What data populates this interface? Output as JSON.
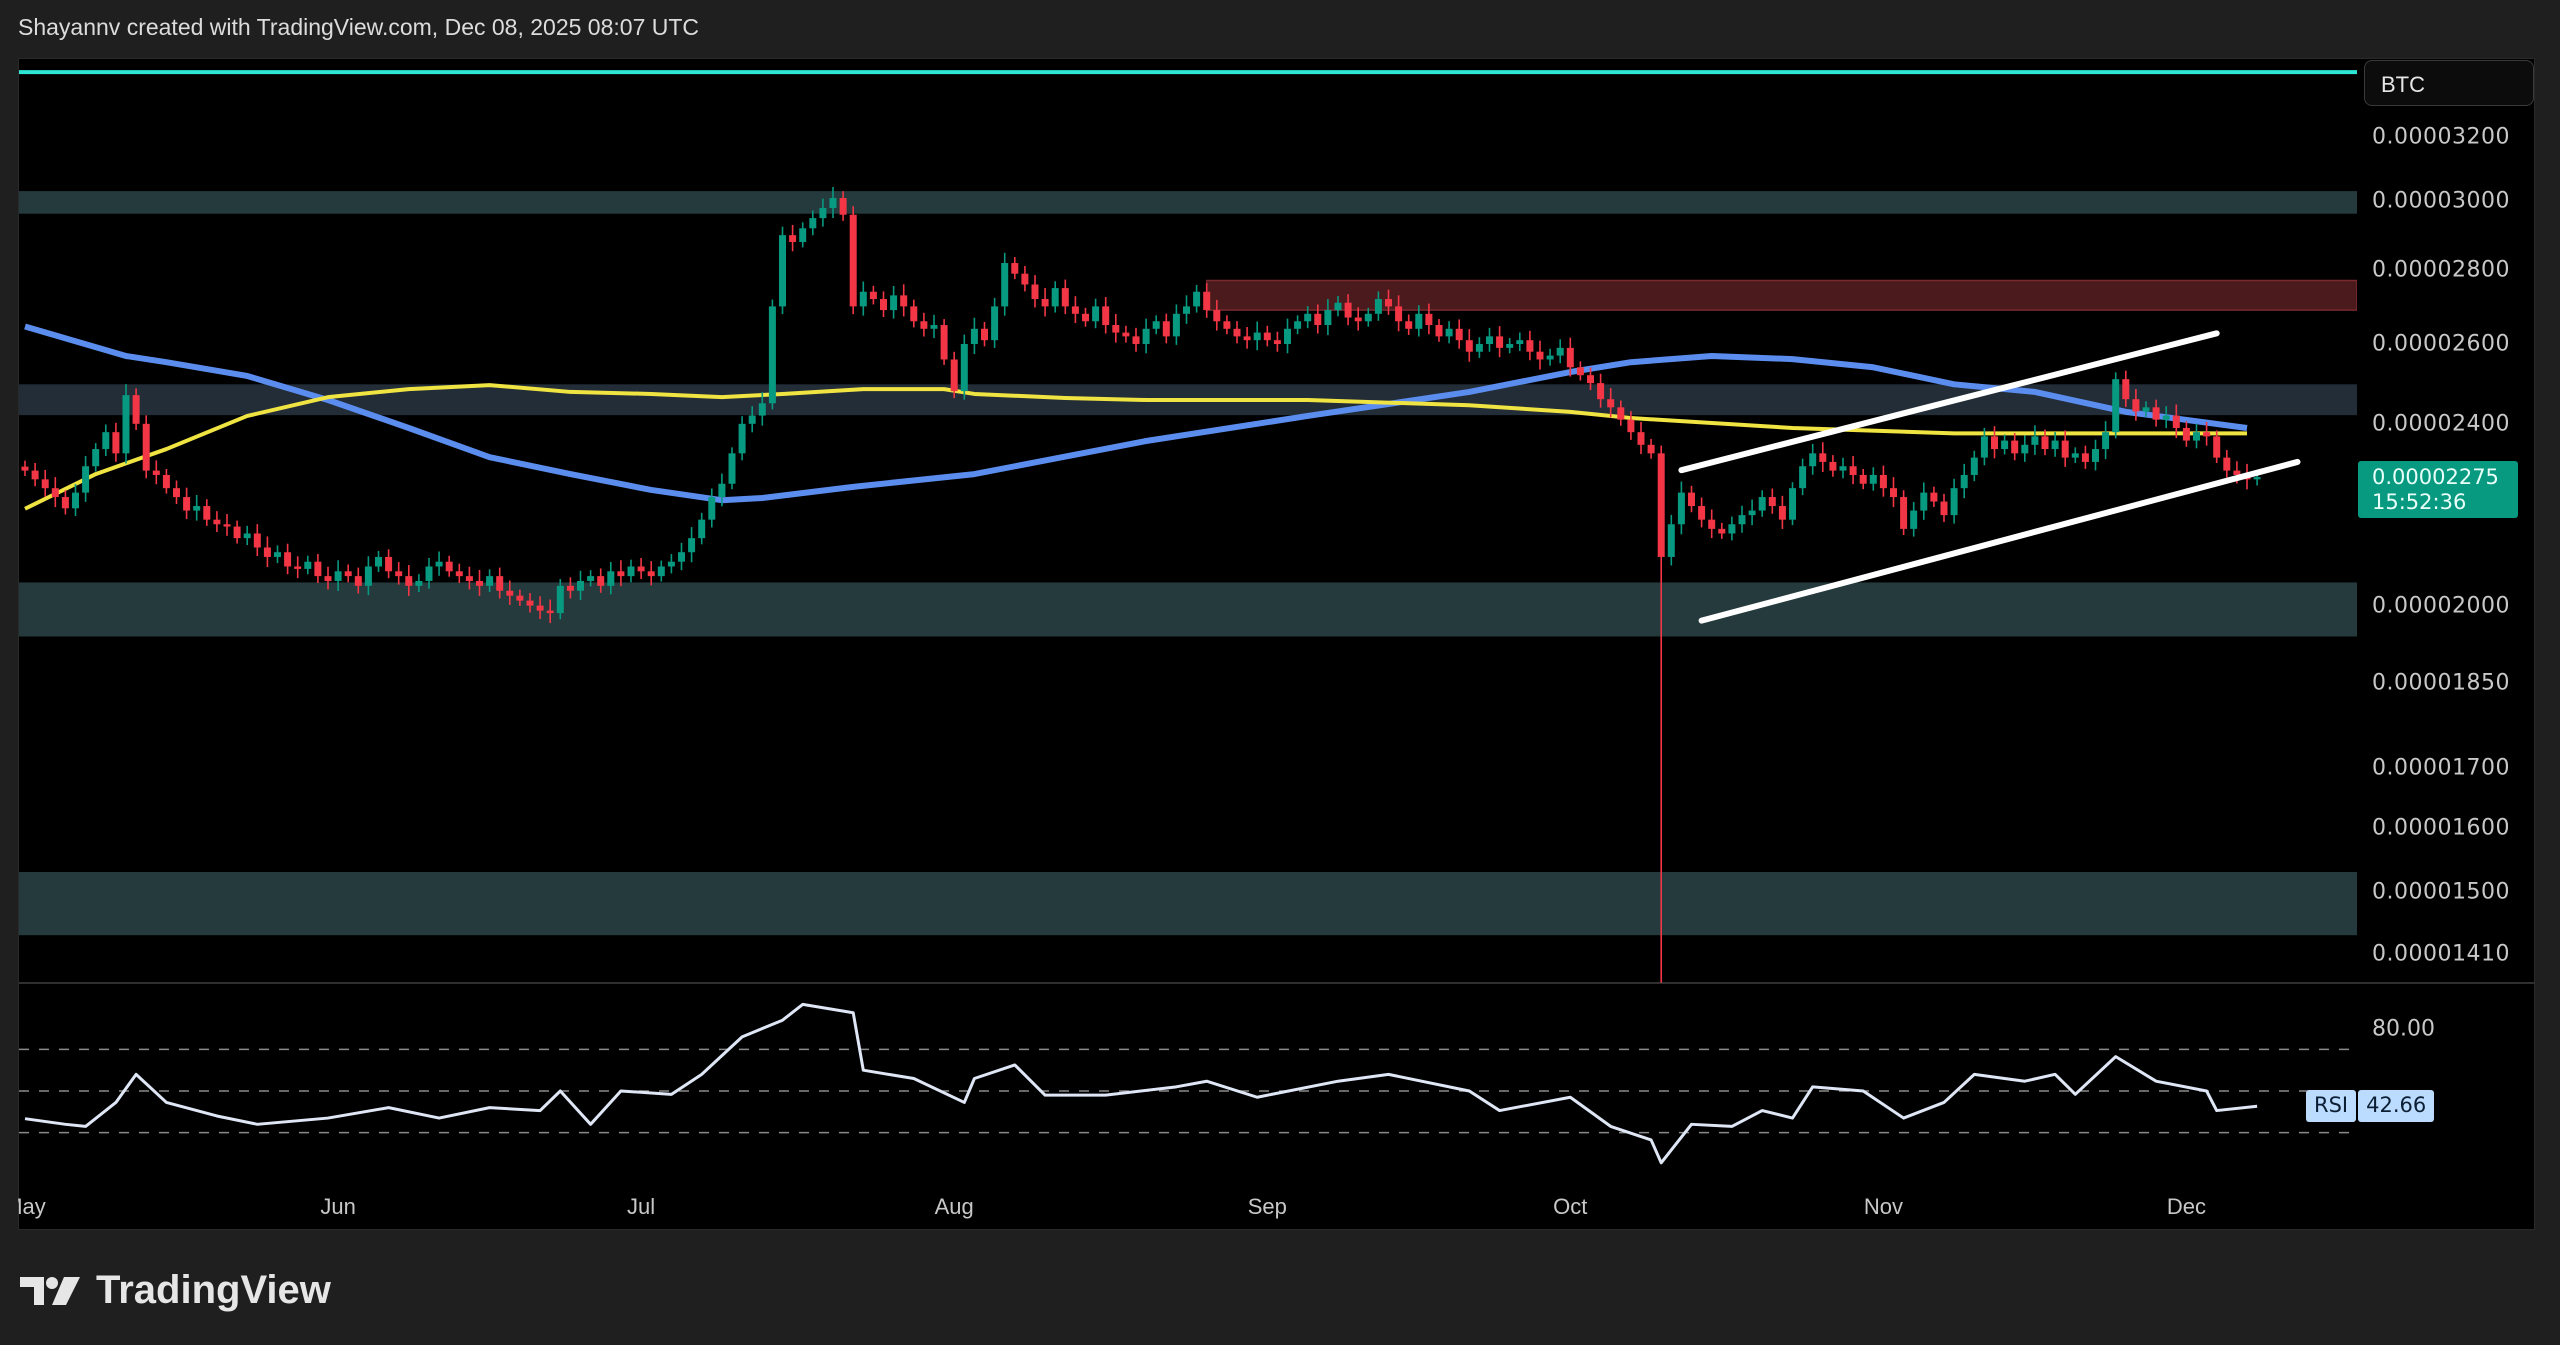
{
  "header": {
    "credit": "Shayannv created with TradingView.com, Dec 08, 2025 08:07 UTC"
  },
  "footer": {
    "logo_text": "TradingView"
  },
  "price_axis": {
    "currency": "BTC",
    "ticks": [
      "0.00003200",
      "0.00003000",
      "0.00002800",
      "0.00002600",
      "0.00002400",
      "0.00002000",
      "0.00001850",
      "0.00001700",
      "0.00001600",
      "0.00001500",
      "0.00001410"
    ],
    "last_price": "0.00002275",
    "countdown": "15:52:36",
    "last_price_color": "#089981"
  },
  "rsi_panel": {
    "label": "RSI",
    "value": "42.66",
    "tick": "80.00",
    "levels": [
      70,
      50,
      30
    ]
  },
  "time_axis": {
    "labels": [
      {
        "date": "2025-05-01",
        "text": "May"
      },
      {
        "date": "2025-06-01",
        "text": "Jun"
      },
      {
        "date": "2025-07-01",
        "text": "Jul"
      },
      {
        "date": "2025-08-01",
        "text": "Aug"
      },
      {
        "date": "2025-09-01",
        "text": "Sep"
      },
      {
        "date": "2025-10-01",
        "text": "Oct"
      },
      {
        "date": "2025-11-01",
        "text": "Nov"
      },
      {
        "date": "2025-12-01",
        "text": "Dec"
      }
    ]
  },
  "chart_data": {
    "type": "candlestick",
    "scale": "log",
    "ylim": [
      1.37e-05,
      3.45e-05
    ],
    "interval": "1D",
    "start_date": "2025-05-01",
    "colors": {
      "up": "#089981",
      "down": "#f23645",
      "ma_blue": "#5b8def",
      "ma_yellow": "#f0e442",
      "resistance_line": "#2ee6d6",
      "trendline": "#ffffff"
    },
    "closes": [
      2.29e-05,
      2.27e-05,
      2.25e-05,
      2.23e-05,
      2.205e-05,
      2.24e-05,
      2.3e-05,
      2.34e-05,
      2.38e-05,
      2.33e-05,
      2.47e-05,
      2.4e-05,
      2.29e-05,
      2.28e-05,
      2.25e-05,
      2.23e-05,
      2.2e-05,
      2.21e-05,
      2.18e-05,
      2.17e-05,
      2.165e-05,
      2.14e-05,
      2.15e-05,
      2.12e-05,
      2.1e-05,
      2.11e-05,
      2.08e-05,
      2.075e-05,
      2.09e-05,
      2.06e-05,
      2.05e-05,
      2.07e-05,
      2.06e-05,
      2.04e-05,
      2.08e-05,
      2.1e-05,
      2.07e-05,
      2.06e-05,
      2.04e-05,
      2.05e-05,
      2.08e-05,
      2.09e-05,
      2.07e-05,
      2.06e-05,
      2.05e-05,
      2.04e-05,
      2.06e-05,
      2.03e-05,
      2.02e-05,
      2.01e-05,
      2e-05,
      1.99e-05,
      1.985e-05,
      2.04e-05,
      2.03e-05,
      2.05e-05,
      2.06e-05,
      2.04e-05,
      2.07e-05,
      2.06e-05,
      2.08e-05,
      2.07e-05,
      2.06e-05,
      2.08e-05,
      2.09e-05,
      2.11e-05,
      2.14e-05,
      2.18e-05,
      2.23e-05,
      2.26e-05,
      2.33e-05,
      2.4e-05,
      2.42e-05,
      2.45e-05,
      2.7e-05,
      2.9e-05,
      2.88e-05,
      2.92e-05,
      2.95e-05,
      2.98e-05,
      3.01e-05,
      2.96e-05,
      2.7e-05,
      2.74e-05,
      2.72e-05,
      2.69e-05,
      2.73e-05,
      2.7e-05,
      2.66e-05,
      2.64e-05,
      2.65e-05,
      2.56e-05,
      2.48e-05,
      2.6e-05,
      2.64e-05,
      2.61e-05,
      2.7e-05,
      2.82e-05,
      2.79e-05,
      2.76e-05,
      2.72e-05,
      2.7e-05,
      2.75e-05,
      2.7e-05,
      2.68e-05,
      2.66e-05,
      2.7e-05,
      2.65e-05,
      2.63e-05,
      2.62e-05,
      2.6e-05,
      2.64e-05,
      2.66e-05,
      2.62e-05,
      2.68e-05,
      2.7e-05,
      2.74e-05,
      2.69e-05,
      2.66e-05,
      2.64e-05,
      2.62e-05,
      2.61e-05,
      2.63e-05,
      2.61e-05,
      2.6e-05,
      2.64e-05,
      2.66e-05,
      2.68e-05,
      2.65e-05,
      2.69e-05,
      2.71e-05,
      2.67e-05,
      2.66e-05,
      2.68e-05,
      2.72e-05,
      2.7e-05,
      2.66e-05,
      2.64e-05,
      2.68e-05,
      2.65e-05,
      2.62e-05,
      2.64e-05,
      2.61e-05,
      2.58e-05,
      2.6e-05,
      2.62e-05,
      2.59e-05,
      2.6e-05,
      2.61e-05,
      2.58e-05,
      2.56e-05,
      2.57e-05,
      2.59e-05,
      2.54e-05,
      2.52e-05,
      2.5e-05,
      2.46e-05,
      2.44e-05,
      2.41e-05,
      2.38e-05,
      2.35e-05,
      2.33e-05,
      2.1e-05,
      2.17e-05,
      2.24e-05,
      2.21e-05,
      2.18e-05,
      2.16e-05,
      2.15e-05,
      2.17e-05,
      2.19e-05,
      2.2e-05,
      2.23e-05,
      2.21e-05,
      2.18e-05,
      2.25e-05,
      2.3e-05,
      2.33e-05,
      2.31e-05,
      2.29e-05,
      2.3e-05,
      2.28e-05,
      2.26e-05,
      2.28e-05,
      2.25e-05,
      2.23e-05,
      2.16e-05,
      2.2e-05,
      2.24e-05,
      2.22e-05,
      2.19e-05,
      2.25e-05,
      2.28e-05,
      2.32e-05,
      2.37e-05,
      2.34e-05,
      2.36e-05,
      2.33e-05,
      2.35e-05,
      2.37e-05,
      2.34e-05,
      2.36e-05,
      2.32e-05,
      2.33e-05,
      2.31e-05,
      2.34e-05,
      2.38e-05,
      2.51e-05,
      2.46e-05,
      2.43e-05,
      2.44e-05,
      2.41e-05,
      2.42e-05,
      2.39e-05,
      2.36e-05,
      2.38e-05,
      2.37e-05,
      2.32e-05,
      2.29e-05,
      2.28e-05,
      2.27e-05,
      2.275e-05
    ],
    "notable_wicks": [
      {
        "date": "2025-10-10",
        "low": 1.37e-05
      }
    ],
    "moving_averages": [
      {
        "color": "blue",
        "points": [
          [
            "2025-05-01",
            2.646e-05
          ],
          [
            "2025-05-11",
            2.569e-05
          ],
          [
            "2025-05-15",
            2.553e-05
          ],
          [
            "2025-05-23",
            2.518e-05
          ],
          [
            "2025-05-31",
            2.458e-05
          ],
          [
            "2025-06-08",
            2.39e-05
          ],
          [
            "2025-06-16",
            2.321e-05
          ],
          [
            "2025-06-24",
            2.282e-05
          ],
          [
            "2025-07-02",
            2.246e-05
          ],
          [
            "2025-07-09",
            2.223e-05
          ],
          [
            "2025-07-13",
            2.228e-05
          ],
          [
            "2025-07-22",
            2.253e-05
          ],
          [
            "2025-08-03",
            2.282e-05
          ],
          [
            "2025-08-20",
            2.359e-05
          ],
          [
            "2025-09-05",
            2.419e-05
          ],
          [
            "2025-09-21",
            2.478e-05
          ],
          [
            "2025-10-01",
            2.528e-05
          ],
          [
            "2025-10-07",
            2.553e-05
          ],
          [
            "2025-10-15",
            2.569e-05
          ],
          [
            "2025-10-23",
            2.561e-05
          ],
          [
            "2025-10-31",
            2.54e-05
          ],
          [
            "2025-11-08",
            2.497e-05
          ],
          [
            "2025-11-16",
            2.478e-05
          ],
          [
            "2025-11-25",
            2.429e-05
          ],
          [
            "2025-12-07",
            2.39e-05
          ]
        ]
      },
      {
        "color": "yellow",
        "points": [
          [
            "2025-05-01",
            2.204e-05
          ],
          [
            "2025-05-08",
            2.282e-05
          ],
          [
            "2025-05-15",
            2.34e-05
          ],
          [
            "2025-05-23",
            2.419e-05
          ],
          [
            "2025-05-31",
            2.465e-05
          ],
          [
            "2025-06-08",
            2.485e-05
          ],
          [
            "2025-06-16",
            2.495e-05
          ],
          [
            "2025-06-24",
            2.478e-05
          ],
          [
            "2025-07-02",
            2.473e-05
          ],
          [
            "2025-07-09",
            2.465e-05
          ],
          [
            "2025-07-15",
            2.473e-05
          ],
          [
            "2025-07-23",
            2.485e-05
          ],
          [
            "2025-07-31",
            2.485e-05
          ],
          [
            "2025-08-03",
            2.473e-05
          ],
          [
            "2025-08-12",
            2.463e-05
          ],
          [
            "2025-08-20",
            2.458e-05
          ],
          [
            "2025-09-05",
            2.458e-05
          ],
          [
            "2025-09-21",
            2.445e-05
          ],
          [
            "2025-10-01",
            2.429e-05
          ],
          [
            "2025-10-07",
            2.414e-05
          ],
          [
            "2025-10-23",
            2.39e-05
          ],
          [
            "2025-11-08",
            2.377e-05
          ],
          [
            "2025-11-25",
            2.377e-05
          ],
          [
            "2025-12-07",
            2.377e-05
          ]
        ]
      }
    ],
    "zones": [
      {
        "from": 2.963e-05,
        "to": 3.031e-05,
        "color": "#243a3d"
      },
      {
        "from": 2.69e-05,
        "to": 2.771e-05,
        "color": "#4a1a1c",
        "start_date": "2025-08-26"
      },
      {
        "from": 2.421e-05,
        "to": 2.497e-05,
        "color": "#232d38"
      },
      {
        "from": 1.939e-05,
        "to": 2.047e-05,
        "color": "#243a3d"
      },
      {
        "from": 1.437e-05,
        "to": 1.531e-05,
        "color": "#243a3d"
      }
    ],
    "horizontal_lines": [
      {
        "price": 3.415e-05,
        "color": "#2ee6d6"
      }
    ],
    "trendlines": [
      {
        "from": [
          "2025-10-12",
          2.291e-05
        ],
        "to": [
          "2025-12-04",
          2.628e-05
        ]
      },
      {
        "from": [
          "2025-10-14",
          1.97e-05
        ],
        "to": [
          "2025-12-12",
          2.31e-05
        ]
      }
    ],
    "rsi": [
      [
        "2025-05-01",
        36.7
      ],
      [
        "2025-05-05",
        34
      ],
      [
        "2025-05-07",
        33
      ],
      [
        "2025-05-10",
        44.5
      ],
      [
        "2025-05-12",
        58
      ],
      [
        "2025-05-15",
        44.5
      ],
      [
        "2025-05-20",
        38
      ],
      [
        "2025-05-24",
        34
      ],
      [
        "2025-05-31",
        37
      ],
      [
        "2025-06-06",
        42
      ],
      [
        "2025-06-11",
        37
      ],
      [
        "2025-06-16",
        42
      ],
      [
        "2025-06-21",
        40.6
      ],
      [
        "2025-06-23",
        50
      ],
      [
        "2025-06-26",
        34
      ],
      [
        "2025-06-29",
        50
      ],
      [
        "2025-07-04",
        48.4
      ],
      [
        "2025-07-07",
        58
      ],
      [
        "2025-07-11",
        76
      ],
      [
        "2025-07-15",
        84
      ],
      [
        "2025-07-17",
        91.6
      ],
      [
        "2025-07-22",
        87.6
      ],
      [
        "2025-07-23",
        60
      ],
      [
        "2025-07-28",
        56
      ],
      [
        "2025-08-02",
        44.5
      ],
      [
        "2025-08-03",
        56
      ],
      [
        "2025-08-07",
        62.5
      ],
      [
        "2025-08-10",
        48
      ],
      [
        "2025-08-16",
        48
      ],
      [
        "2025-08-23",
        52
      ],
      [
        "2025-08-26",
        54.7
      ],
      [
        "2025-08-31",
        47
      ],
      [
        "2025-09-08",
        54.7
      ],
      [
        "2025-09-13",
        58
      ],
      [
        "2025-09-21",
        50
      ],
      [
        "2025-09-24",
        40.6
      ],
      [
        "2025-10-01",
        47
      ],
      [
        "2025-10-05",
        33
      ],
      [
        "2025-10-09",
        26.5
      ],
      [
        "2025-10-10",
        15.5
      ],
      [
        "2025-10-13",
        34
      ],
      [
        "2025-10-17",
        33
      ],
      [
        "2025-10-20",
        40.6
      ],
      [
        "2025-10-23",
        37
      ],
      [
        "2025-10-25",
        52
      ],
      [
        "2025-10-30",
        50
      ],
      [
        "2025-11-03",
        37
      ],
      [
        "2025-11-07",
        44.5
      ],
      [
        "2025-11-10",
        58
      ],
      [
        "2025-11-15",
        54.7
      ],
      [
        "2025-11-18",
        58
      ],
      [
        "2025-11-20",
        48.4
      ],
      [
        "2025-11-24",
        66.5
      ],
      [
        "2025-11-28",
        54.7
      ],
      [
        "2025-12-03",
        50
      ],
      [
        "2025-12-04",
        40.6
      ],
      [
        "2025-12-08",
        42.66
      ]
    ]
  }
}
